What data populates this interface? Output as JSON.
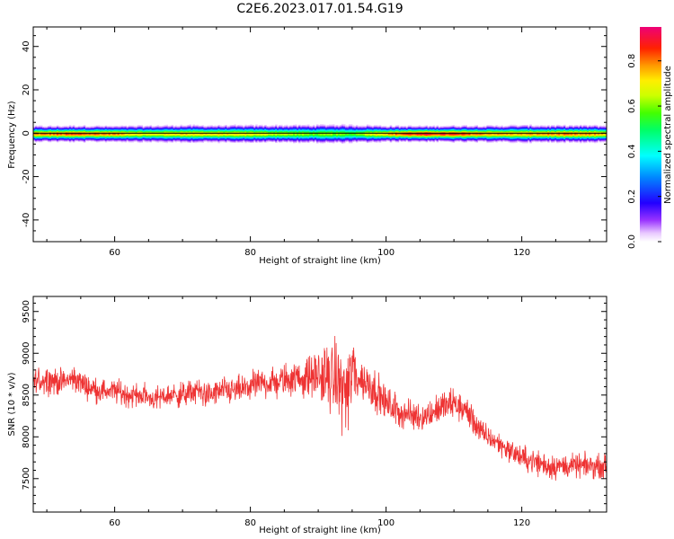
{
  "title": "C2E6.2023.017.01.54.G19",
  "colors": {
    "snr_line": "#ee3333",
    "background": "#ffffff",
    "axis": "#000000",
    "zero_line": "#000000"
  },
  "colorbar": {
    "label": "Normalized spectral amplitude",
    "range": [
      0,
      0.95
    ],
    "ticks": [
      "0.0",
      "0.2",
      "0.4",
      "0.6",
      "0.8"
    ],
    "tick_values": [
      0.0,
      0.2,
      0.4,
      0.6,
      0.8
    ],
    "colormap": "rainbow (white → purple → blue → cyan → green → yellow → orange → red → magenta)"
  },
  "chart_data": [
    {
      "type": "heatmap",
      "xlabel": "Height of straight line (km)",
      "ylabel": "Frequency (Hz)",
      "xlim": [
        48,
        132.5
      ],
      "ylim": [
        -50,
        49
      ],
      "xticks": [
        60,
        80,
        100,
        120
      ],
      "xtick_labels": [
        "60",
        "80",
        "100",
        "120"
      ],
      "yticks": [
        40,
        20,
        0,
        -20,
        -40
      ],
      "ytick_labels": [
        "40",
        "20",
        "0",
        "-20",
        "-40"
      ],
      "description_band": "Narrow spectral band centered at 0 Hz spanning roughly -5 to +4 Hz across all heights; peak amplitude (red) near 0 Hz, strongest near 100-113 km",
      "center_frequency_hz": 0,
      "band_halfwidth_hz": 4.5,
      "peak_profile": {
        "x": [
          48,
          50,
          55,
          60,
          65,
          70,
          75,
          80,
          85,
          90,
          92,
          95,
          98,
          100,
          103,
          106,
          110,
          113,
          116,
          120,
          125,
          130,
          132.5
        ],
        "peak_amplitude": [
          0.82,
          0.85,
          0.88,
          0.84,
          0.72,
          0.78,
          0.76,
          0.74,
          0.68,
          0.62,
          0.65,
          0.6,
          0.75,
          0.8,
          0.9,
          0.92,
          0.9,
          0.86,
          0.82,
          0.8,
          0.84,
          0.82,
          0.8
        ],
        "halfwidth_hz": [
          4.0,
          4.0,
          4.2,
          4.0,
          4.3,
          4.5,
          4.4,
          4.5,
          4.6,
          4.8,
          5.0,
          4.8,
          4.5,
          4.2,
          4.0,
          4.0,
          4.2,
          4.3,
          4.2,
          4.5,
          4.3,
          4.4,
          4.3
        ]
      }
    },
    {
      "type": "line",
      "xlabel": "Height of straight line (km)",
      "ylabel": "SNR (10 * v/v)",
      "xlim": [
        48,
        132.5
      ],
      "ylim": [
        7100,
        9680
      ],
      "xticks": [
        60,
        80,
        100,
        120
      ],
      "xtick_labels": [
        "60",
        "80",
        "100",
        "120"
      ],
      "yticks": [
        7500,
        8000,
        8500,
        9000,
        9500
      ],
      "ytick_labels": [
        "7500",
        "8000",
        "8500",
        "9000",
        "9500"
      ],
      "series": [
        {
          "x": [
            48,
            50,
            52,
            54,
            56,
            58,
            60,
            62,
            64,
            66,
            68,
            70,
            72,
            74,
            76,
            78,
            80,
            82,
            84,
            86,
            88,
            90,
            91,
            92,
            93,
            94,
            94.5,
            95,
            96,
            98,
            100,
            102,
            104,
            106,
            108,
            110,
            112,
            114,
            116,
            118,
            120,
            122,
            124,
            126,
            128,
            130,
            132.5
          ],
          "values": [
            8650,
            8700,
            8650,
            8700,
            8600,
            8550,
            8550,
            8500,
            8500,
            8450,
            8500,
            8500,
            8550,
            8500,
            8550,
            8550,
            8600,
            8650,
            8650,
            8700,
            8700,
            8750,
            8700,
            8700,
            8650,
            8550,
            8550,
            8800,
            8700,
            8600,
            8400,
            8300,
            8250,
            8250,
            8350,
            8400,
            8300,
            8050,
            7950,
            7850,
            7750,
            7700,
            7650,
            7650,
            7650,
            7650,
            7650
          ],
          "noise_amplitude": [
            250,
            250,
            220,
            230,
            210,
            200,
            200,
            220,
            200,
            200,
            210,
            220,
            230,
            220,
            240,
            230,
            250,
            260,
            280,
            300,
            330,
            420,
            550,
            600,
            620,
            700,
            800,
            750,
            400,
            350,
            300,
            280,
            260,
            250,
            260,
            280,
            260,
            220,
            200,
            200,
            200,
            230,
            250,
            200,
            200,
            200,
            200
          ]
        }
      ]
    }
  ]
}
